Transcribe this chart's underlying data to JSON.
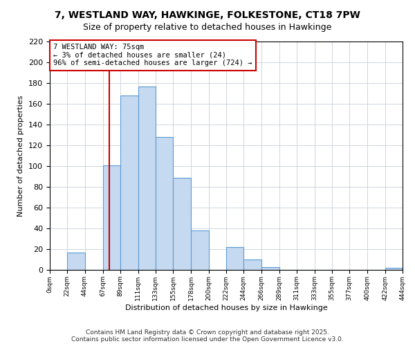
{
  "title": "7, WESTLAND WAY, HAWKINGE, FOLKESTONE, CT18 7PW",
  "subtitle": "Size of property relative to detached houses in Hawkinge",
  "xlabel": "Distribution of detached houses by size in Hawkinge",
  "ylabel": "Number of detached properties",
  "bar_color": "#c5d9f0",
  "bar_edge_color": "#5b9bd5",
  "annotation_title": "7 WESTLAND WAY: 75sqm",
  "annotation_line1": "← 3% of detached houses are smaller (24)",
  "annotation_line2": "96% of semi-detached houses are larger (724) →",
  "vline_x": 75,
  "vline_color": "#cc0000",
  "bin_edges": [
    0,
    22,
    44,
    67,
    89,
    111,
    133,
    155,
    178,
    200,
    222,
    244,
    266,
    289,
    311,
    333,
    355,
    377,
    400,
    422,
    444
  ],
  "bin_counts": [
    0,
    17,
    0,
    101,
    168,
    177,
    128,
    89,
    38,
    0,
    22,
    10,
    3,
    0,
    0,
    0,
    0,
    0,
    0,
    2
  ],
  "xlim": [
    0,
    444
  ],
  "ylim": [
    0,
    220
  ],
  "yticks": [
    0,
    20,
    40,
    60,
    80,
    100,
    120,
    140,
    160,
    180,
    200,
    220
  ],
  "xtick_labels": [
    "0sqm",
    "22sqm",
    "44sqm",
    "67sqm",
    "89sqm",
    "111sqm",
    "133sqm",
    "155sqm",
    "178sqm",
    "200sqm",
    "222sqm",
    "244sqm",
    "266sqm",
    "289sqm",
    "311sqm",
    "333sqm",
    "355sqm",
    "377sqm",
    "400sqm",
    "422sqm",
    "444sqm"
  ],
  "footer_line1": "Contains HM Land Registry data © Crown copyright and database right 2025.",
  "footer_line2": "Contains public sector information licensed under the Open Government Licence v3.0.",
  "background_color": "#ffffff",
  "grid_color": "#c8d0d8"
}
